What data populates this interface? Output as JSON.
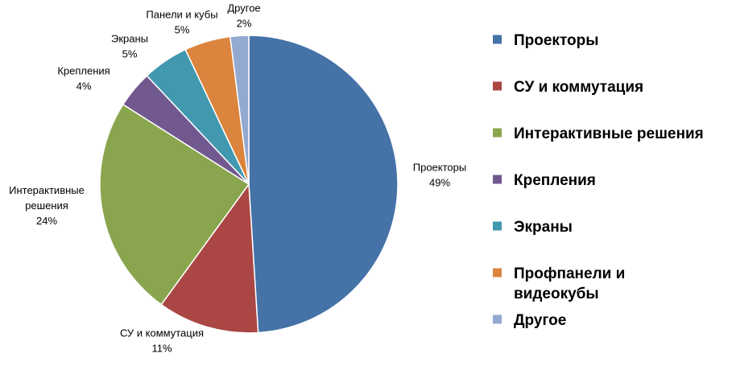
{
  "chart_data": {
    "type": "pie",
    "title": "",
    "slices": [
      {
        "name": "Проекторы",
        "value": 49,
        "label_lines": [
          "Проекторы",
          "49%"
        ],
        "legend_lines": [
          "Проекторы"
        ],
        "color": "#4572A7"
      },
      {
        "name": "СУ и коммутация",
        "value": 11,
        "label_lines": [
          "СУ и коммутация",
          "11%"
        ],
        "legend_lines": [
          "СУ и коммутация"
        ],
        "color": "#AA4643"
      },
      {
        "name": "Интерактивные решения",
        "value": 24,
        "label_lines": [
          "Интерактивные",
          "решения",
          "24%"
        ],
        "legend_lines": [
          "Интерактивные решения"
        ],
        "color": "#89A54E"
      },
      {
        "name": "Крепления",
        "value": 4,
        "label_lines": [
          "Крепления",
          "4%"
        ],
        "legend_lines": [
          "Крепления"
        ],
        "color": "#71588F"
      },
      {
        "name": "Экраны",
        "value": 5,
        "label_lines": [
          "Экраны",
          "5%"
        ],
        "legend_lines": [
          "Экраны"
        ],
        "color": "#4198AF"
      },
      {
        "name": "Профпанели и видеокубы",
        "value": 5,
        "label_lines": [
          "Панели и кубы",
          "5%"
        ],
        "legend_lines": [
          "Профпанели и",
          "видеокубы"
        ],
        "color": "#DB843D"
      },
      {
        "name": "Другое",
        "value": 2,
        "label_lines": [
          "Другое",
          "2%"
        ],
        "legend_lines": [
          "Другое"
        ],
        "color": "#93A9CF"
      }
    ],
    "legend_position": "right",
    "start_angle": "12 o'clock",
    "direction": "clockwise"
  }
}
